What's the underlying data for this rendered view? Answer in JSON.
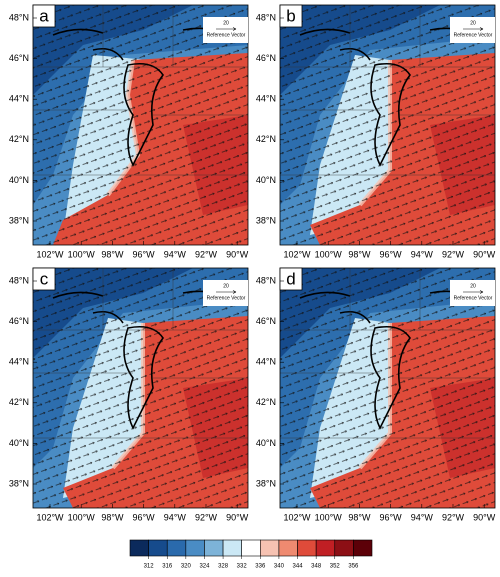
{
  "panels": [
    {
      "label": "a"
    },
    {
      "label": "b"
    },
    {
      "label": "c"
    },
    {
      "label": "d"
    }
  ],
  "map": {
    "lat_ticks": [
      {
        "value": 48,
        "label": "48°N"
      },
      {
        "value": 46,
        "label": "46°N"
      },
      {
        "value": 44,
        "label": "44°N"
      },
      {
        "value": 42,
        "label": "42°N"
      },
      {
        "value": 40,
        "label": "40°N"
      },
      {
        "value": 38,
        "label": "38°N"
      }
    ],
    "lon_ticks": [
      {
        "value": -102,
        "label": "102°W"
      },
      {
        "value": -100,
        "label": "100°W"
      },
      {
        "value": -98,
        "label": "98°W"
      },
      {
        "value": -96,
        "label": "96°W"
      },
      {
        "value": -94,
        "label": "94°W"
      },
      {
        "value": -92,
        "label": "92°W"
      },
      {
        "value": -90,
        "label": "90°W"
      }
    ]
  },
  "reference_vector": {
    "magnitude": "20",
    "label": "Reference Vector"
  },
  "colorbar": {
    "colors": [
      "#0b2a5c",
      "#164b8c",
      "#2a6aac",
      "#4a8cc4",
      "#7db3d8",
      "#cbe8f5",
      "#ffffff",
      "#f6c2b2",
      "#ef8a70",
      "#df4b3a",
      "#c01f24",
      "#8c0f15",
      "#5c0008"
    ],
    "ticks": [
      312,
      316,
      320,
      324,
      328,
      332,
      336,
      340,
      344,
      348,
      352,
      356
    ]
  }
}
